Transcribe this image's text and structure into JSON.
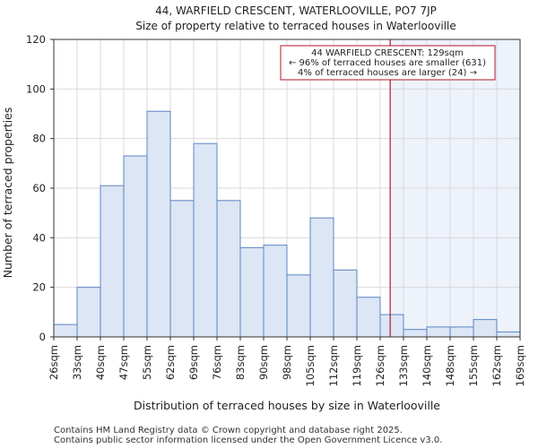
{
  "chart_data": {
    "type": "bar",
    "title": "44, WARFIELD CRESCENT, WATERLOOVILLE, PO7 7JP",
    "subtitle": "Size of property relative to terraced houses in Waterlooville",
    "xlabel": "Distribution of terraced houses by size in Waterlooville",
    "ylabel": "Number of terraced properties",
    "ylim": [
      0,
      120
    ],
    "yticks": [
      0,
      20,
      40,
      60,
      80,
      100,
      120
    ],
    "bin_edges": [
      26,
      33,
      40,
      47,
      55,
      62,
      69,
      76,
      83,
      90,
      98,
      105,
      112,
      119,
      126,
      133,
      140,
      148,
      155,
      162,
      169
    ],
    "tick_labels": [
      "26sqm",
      "33sqm",
      "40sqm",
      "47sqm",
      "55sqm",
      "62sqm",
      "69sqm",
      "76sqm",
      "83sqm",
      "90sqm",
      "98sqm",
      "105sqm",
      "112sqm",
      "119sqm",
      "126sqm",
      "133sqm",
      "140sqm",
      "148sqm",
      "155sqm",
      "162sqm",
      "169sqm"
    ],
    "values": [
      5,
      20,
      61,
      73,
      91,
      55,
      78,
      55,
      36,
      37,
      25,
      48,
      27,
      16,
      9,
      3,
      4,
      4,
      7,
      2
    ],
    "grid": true,
    "marker": {
      "value": 129,
      "label": "44 WARFIELD CRESCENT: 129sqm"
    },
    "annotation_lines": [
      "44 WARFIELD CRESCENT: 129sqm",
      "← 96% of terraced houses are smaller (631)",
      "4% of terraced houses are larger (24) →"
    ],
    "colors": {
      "bar_fill": "#dce6f4",
      "bar_edge": "#5b84c4",
      "marker": "#b0182a",
      "highlight": "#edf2fb",
      "grid": "#d9d9d9"
    }
  },
  "footer": {
    "line1": "Contains HM Land Registry data © Crown copyright and database right 2025.",
    "line2": "Contains public sector information licensed under the Open Government Licence v3.0."
  }
}
